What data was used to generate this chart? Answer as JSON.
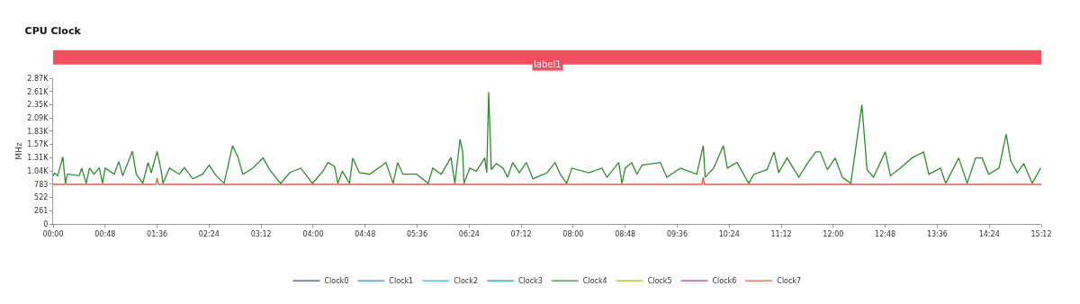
{
  "chart_data": {
    "type": "line",
    "title": "CPU Clock",
    "ylabel": "MHz",
    "xlim": [
      0,
      15.2
    ],
    "xticks": [
      {
        "value": 0,
        "label": "00:00"
      },
      {
        "value": 0.8,
        "label": "00:48"
      },
      {
        "value": 1.6,
        "label": "01:36"
      },
      {
        "value": 2.4,
        "label": "02:24"
      },
      {
        "value": 3.2,
        "label": "03:12"
      },
      {
        "value": 4,
        "label": "04:00"
      },
      {
        "value": 4.8,
        "label": "04:48"
      },
      {
        "value": 5.6,
        "label": "05:36"
      },
      {
        "value": 6.4,
        "label": "06:24"
      },
      {
        "value": 7.2,
        "label": "07:12"
      },
      {
        "value": 8,
        "label": "08:00"
      },
      {
        "value": 8.8,
        "label": "08:48"
      },
      {
        "value": 9.6,
        "label": "09:36"
      },
      {
        "value": 10.4,
        "label": "10:24"
      },
      {
        "value": 11.2,
        "label": "11:12"
      },
      {
        "value": 12,
        "label": "12:00"
      },
      {
        "value": 12.8,
        "label": "12:48"
      },
      {
        "value": 13.6,
        "label": "13:36"
      },
      {
        "value": 14.4,
        "label": "14:24"
      },
      {
        "value": 15.2,
        "label": "15:12"
      }
    ],
    "ylim": [
      0,
      2871
    ],
    "yticks": [
      0,
      261,
      522,
      783,
      {
        "value": 1044,
        "label": "1.04K"
      },
      {
        "value": 1305,
        "label": "1.31K"
      },
      {
        "value": 1566,
        "label": "1.57K"
      },
      {
        "value": 1827,
        "label": "1.83K"
      },
      {
        "value": 2088,
        "label": "2.09K"
      },
      {
        "value": 2349,
        "label": "2.35K"
      },
      {
        "value": 2610,
        "label": "2.61K"
      },
      {
        "value": 2871,
        "label": "2.87K"
      }
    ],
    "bands": [
      {
        "axis": "x",
        "from": 0,
        "to": 15.2,
        "label": "label1"
      }
    ],
    "legend": "bottom",
    "marker": "none",
    "line_style": "solid",
    "series": [
      {
        "name": "Clock0",
        "color": "#3b4a8c"
      },
      {
        "name": "Clock1",
        "color": "#2a8fd8"
      },
      {
        "name": "Clock2",
        "color": "#38b8e0"
      },
      {
        "name": "Clock3",
        "color": "#1a9a8a"
      },
      {
        "name": "Clock4",
        "color": "#2e8b2e",
        "x": [
          0.0,
          0.02,
          0.07,
          0.15,
          0.19,
          0.22,
          0.4,
          0.44,
          0.51,
          0.56,
          0.63,
          0.71,
          0.76,
          0.8,
          0.94,
          1.01,
          1.07,
          1.22,
          1.28,
          1.38,
          1.46,
          1.51,
          1.6,
          1.66,
          1.69,
          1.79,
          1.94,
          2.02,
          2.15,
          2.3,
          2.4,
          2.51,
          2.63,
          2.76,
          2.84,
          2.92,
          3.07,
          3.23,
          3.33,
          3.5,
          3.64,
          3.81,
          3.99,
          4.15,
          4.23,
          4.33,
          4.38,
          4.45,
          4.56,
          4.61,
          4.71,
          4.87,
          5.12,
          5.23,
          5.3,
          5.38,
          5.59,
          5.77,
          5.84,
          5.97,
          6.12,
          6.18,
          6.26,
          6.3,
          6.32,
          6.41,
          6.51,
          6.64,
          6.67,
          6.7,
          6.74,
          6.82,
          6.92,
          6.99,
          7.07,
          7.17,
          7.28,
          7.38,
          7.49,
          7.6,
          7.72,
          7.8,
          7.9,
          7.98,
          8.24,
          8.44,
          8.52,
          8.7,
          8.75,
          8.8,
          8.9,
          8.98,
          9.06,
          9.34,
          9.44,
          9.65,
          9.9,
          10.0,
          10.03,
          10.16,
          10.31,
          10.37,
          10.52,
          10.7,
          10.78,
          10.98,
          11.09,
          11.16,
          11.29,
          11.47,
          11.6,
          11.73,
          11.8,
          11.91,
          12.03,
          12.14,
          12.27,
          12.44,
          12.52,
          12.62,
          12.8,
          12.88,
          13.03,
          13.21,
          13.39,
          13.47,
          13.65,
          13.73,
          13.93,
          14.06,
          14.19,
          14.29,
          14.39,
          14.55,
          14.66,
          14.73,
          14.83,
          14.93,
          15.06,
          15.19
        ],
        "values": [
          950,
          1000,
          950,
          1320,
          800,
          980,
          950,
          1100,
          800,
          1100,
          980,
          1110,
          800,
          1100,
          980,
          1230,
          950,
          1430,
          980,
          800,
          1210,
          1010,
          1430,
          1070,
          800,
          1100,
          980,
          1110,
          890,
          980,
          1160,
          950,
          800,
          1540,
          1330,
          980,
          1100,
          1300,
          1070,
          800,
          1010,
          1100,
          800,
          1040,
          1210,
          1130,
          800,
          1040,
          800,
          1300,
          1010,
          980,
          1210,
          800,
          1210,
          980,
          980,
          800,
          1100,
          980,
          1310,
          800,
          1670,
          1420,
          800,
          1100,
          1040,
          1300,
          1010,
          2600,
          1070,
          1190,
          1100,
          920,
          1210,
          1010,
          1210,
          890,
          950,
          1010,
          1210,
          980,
          800,
          1100,
          1010,
          1100,
          920,
          1210,
          800,
          1100,
          1210,
          980,
          1160,
          1210,
          920,
          1100,
          980,
          1540,
          920,
          1100,
          1540,
          1100,
          1210,
          800,
          980,
          1070,
          1420,
          1010,
          1300,
          920,
          1190,
          1420,
          1420,
          1070,
          1300,
          920,
          800,
          2350,
          1070,
          920,
          1420,
          950,
          1100,
          1300,
          1420,
          980,
          1100,
          800,
          1300,
          800,
          1300,
          1300,
          980,
          1100,
          1770,
          1240,
          1010,
          1190,
          800,
          1100
        ]
      },
      {
        "name": "Clock5",
        "color": "#a8c020"
      },
      {
        "name": "Clock6",
        "color": "#a040a0"
      },
      {
        "name": "Clock7",
        "color": "#e0603f",
        "x": [
          0,
          1.58,
          1.6,
          1.62,
          9.98,
          10.0,
          10.02,
          15.2
        ],
        "values": [
          780,
          780,
          900,
          780,
          780,
          920,
          780,
          780
        ]
      }
    ]
  }
}
